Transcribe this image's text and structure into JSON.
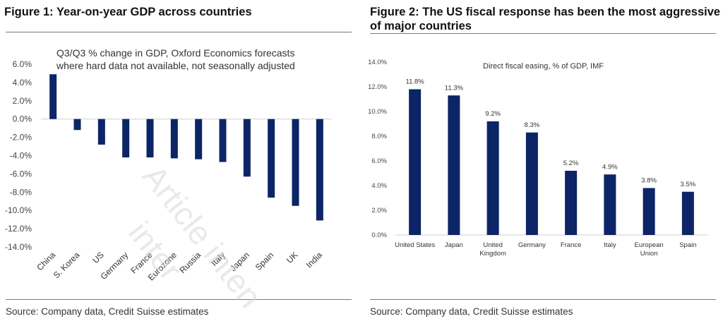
{
  "chart_data": [
    {
      "type": "bar",
      "title": "Figure 1: Year-on-year GDP across countries",
      "subtitle_lines": [
        "Q3/Q3 % change in GDP, Oxford Economics forecasts",
        "where hard data not available, not seasonally adjusted"
      ],
      "xlabel": "",
      "ylabel": "",
      "categories": [
        "China",
        "S. Korea",
        "US",
        "Germany",
        "France",
        "Eurozone",
        "Russia",
        "Italy",
        "Japan",
        "Spain",
        "UK",
        "India"
      ],
      "values": [
        4.9,
        -1.2,
        -2.8,
        -4.2,
        -4.2,
        -4.3,
        -4.4,
        -4.7,
        -6.3,
        -8.6,
        -9.5,
        -11.1
      ],
      "unit": "%",
      "ylim": [
        -14,
        6
      ],
      "yticks": [
        6,
        4,
        2,
        0,
        -2,
        -4,
        -6,
        -8,
        -10,
        -12,
        -14
      ],
      "ytick_labels": [
        "6.0%",
        "4.0%",
        "2.0%",
        "0.0%",
        "-2.0%",
        "-4.0%",
        "-6.0%",
        "-8.0%",
        "-10.0%",
        "-12.0%",
        "-14.0%"
      ],
      "grid": false,
      "legend": "none",
      "bar_color": "#0b2566",
      "source": "Source: Company data, Credit Suisse estimates"
    },
    {
      "type": "bar",
      "title": "Figure 2: The US fiscal response has been the most aggressive of major countries",
      "title_lines": [
        "Figure 2: The US fiscal response has been the most aggressive",
        "of major countries"
      ],
      "subtitle": "Direct fiscal easing, % of GDP, IMF",
      "xlabel": "",
      "ylabel": "",
      "categories": [
        "United States",
        "Japan",
        "United Kingdom",
        "Germany",
        "France",
        "Italy",
        "European Union",
        "Spain"
      ],
      "category_lines": [
        [
          "United States"
        ],
        [
          "Japan"
        ],
        [
          "United",
          "Kingdom"
        ],
        [
          "Germany"
        ],
        [
          "France"
        ],
        [
          "Italy"
        ],
        [
          "European",
          "Union"
        ],
        [
          "Spain"
        ]
      ],
      "values": [
        11.8,
        11.3,
        9.2,
        8.3,
        5.2,
        4.9,
        3.8,
        3.5
      ],
      "data_labels": [
        "11.8%",
        "11.3%",
        "9.2%",
        "8.3%",
        "5.2%",
        "4.9%",
        "3.8%",
        "3.5%"
      ],
      "unit": "%",
      "ylim": [
        0,
        14
      ],
      "yticks": [
        14,
        12,
        10,
        8,
        6,
        4,
        2,
        0
      ],
      "ytick_labels": [
        "14.0%",
        "12.0%",
        "10.0%",
        "8.0%",
        "6.0%",
        "4.0%",
        "2.0%",
        "0.0%"
      ],
      "grid": false,
      "legend": "none",
      "bar_color": "#0b2566",
      "source": "Source: Company data, Credit Suisse estimates"
    }
  ],
  "watermark_lines": [
    "Article inten",
    "inter"
  ]
}
